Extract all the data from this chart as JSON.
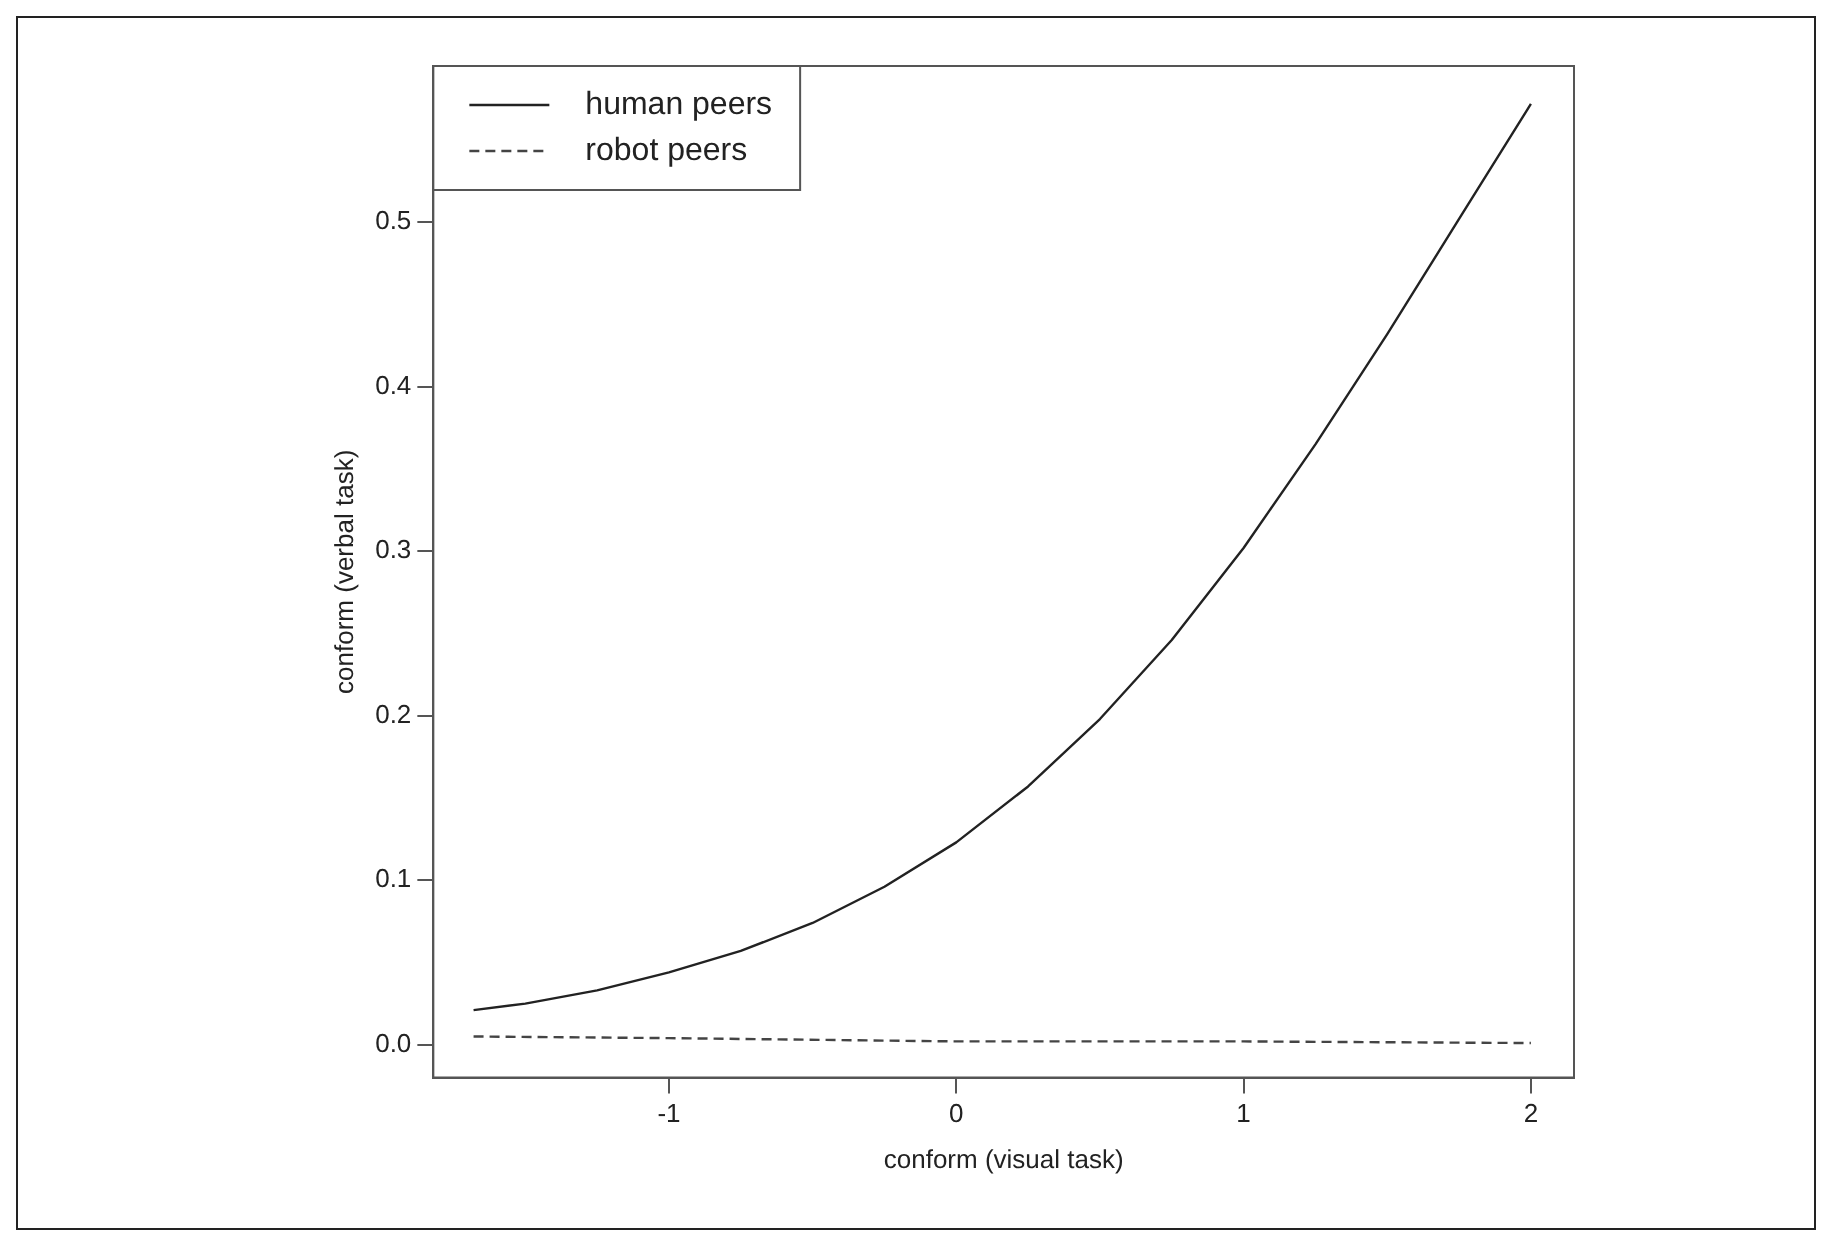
{
  "chart_data": {
    "type": "line",
    "xlabel": "conform (visual task)",
    "ylabel": "conform (verbal task)",
    "xlim": [
      -1.82,
      2.15
    ],
    "xticks": [
      -1,
      0,
      1,
      2
    ],
    "ylim": [
      -0.02,
      0.595
    ],
    "yticks": [
      {
        "value": 0,
        "label": "0.0"
      },
      {
        "value": 0.1,
        "label": "0.1"
      },
      {
        "value": 0.2,
        "label": "0.2"
      },
      {
        "value": 0.3,
        "label": "0.3"
      },
      {
        "value": 0.4,
        "label": "0.4"
      },
      {
        "value": 0.5,
        "label": "0.5"
      }
    ],
    "grid": false,
    "legend": "top left",
    "marker": "none",
    "series": [
      {
        "name": "human peers",
        "color": "#222222",
        "line_style": "solid",
        "x": [
          -1.68,
          -1.5,
          -1.25,
          -1,
          -0.75,
          -0.5,
          -0.25,
          0,
          0.25,
          0.5,
          0.75,
          1,
          1.25,
          1.5,
          1.75,
          2
        ],
        "values": [
          0.021,
          0.025,
          0.033,
          0.044,
          0.057,
          0.074,
          0.096,
          0.123,
          0.157,
          0.198,
          0.246,
          0.302,
          0.365,
          0.432,
          0.502,
          0.572
        ]
      },
      {
        "name": "robot peers",
        "color": "#444444",
        "line_style": "dashed",
        "x": [
          -1.68,
          -1,
          0,
          1,
          2
        ],
        "values": [
          0.005,
          0.004,
          0.002,
          0.002,
          0.001
        ]
      }
    ]
  }
}
